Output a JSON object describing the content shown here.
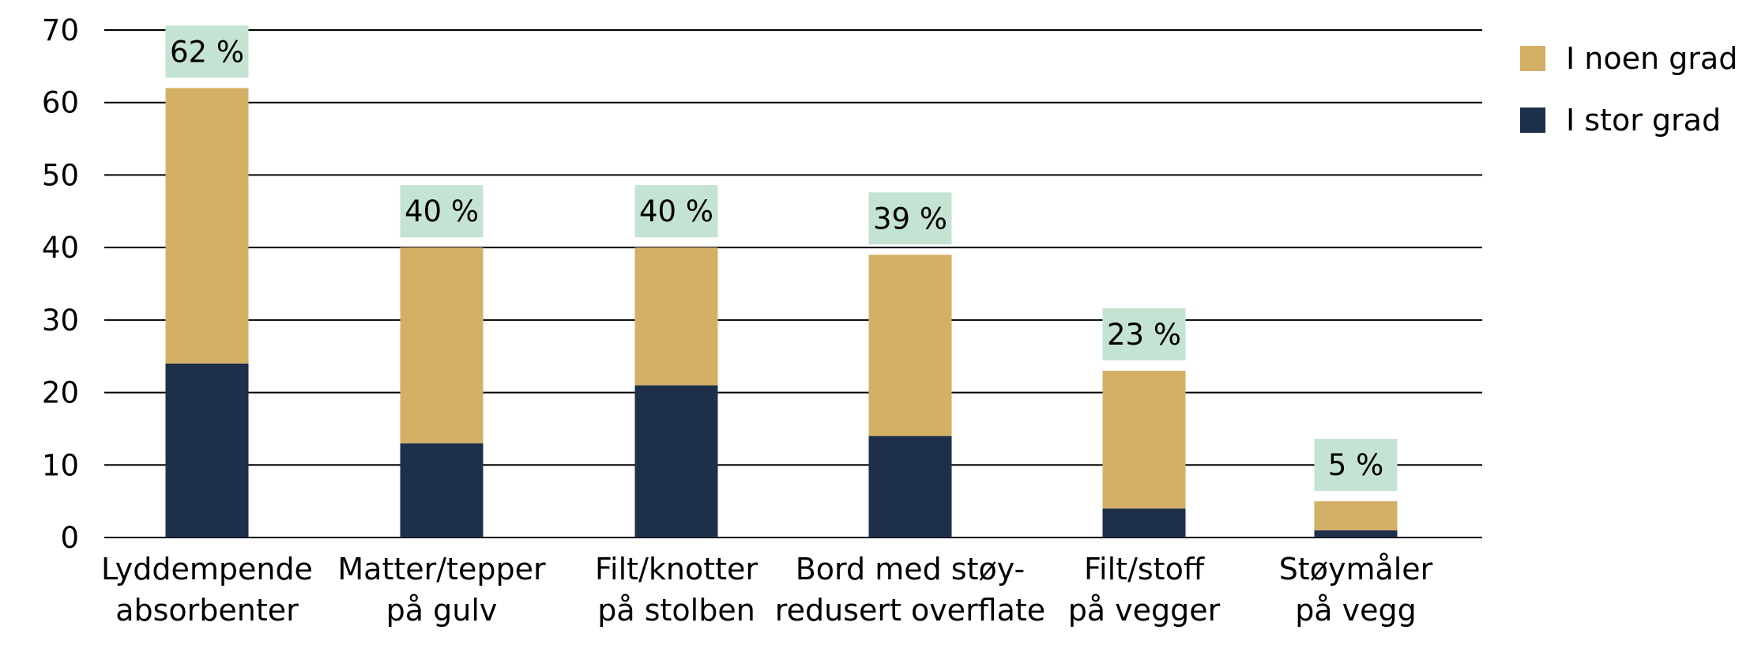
{
  "chart_data": {
    "type": "bar",
    "stacked": true,
    "categories": [
      [
        "Lyddempende",
        "absorbenter"
      ],
      [
        "Matter/tepper",
        "på gulv"
      ],
      [
        "Filt/knotter",
        "på stolben"
      ],
      [
        "Bord med støy-",
        "redusert overflate"
      ],
      [
        "Filt/stoff",
        "på vegger"
      ],
      [
        "Støymåler",
        "på vegg"
      ]
    ],
    "series": [
      {
        "name": "I stor grad",
        "color": "#1e3049",
        "values": [
          24,
          13,
          21,
          14,
          4,
          1
        ]
      },
      {
        "name": "I noen grad",
        "color": "#d4b066",
        "values": [
          38,
          27,
          19,
          25,
          19,
          4
        ]
      }
    ],
    "totals": [
      62,
      40,
      40,
      39,
      23,
      5
    ],
    "total_labels": [
      "62 %",
      "40 %",
      "40 %",
      "39 %",
      "23 %",
      "5 %"
    ],
    "total_label_bg": "#c5e3d3",
    "ylim": [
      0,
      70
    ],
    "yticks": [
      0,
      10,
      20,
      30,
      40,
      50,
      60,
      70
    ],
    "grid": true,
    "legend_position": "top-right",
    "legend_order": [
      "I noen grad",
      "I stor grad"
    ],
    "title": "",
    "xlabel": "",
    "ylabel": ""
  }
}
